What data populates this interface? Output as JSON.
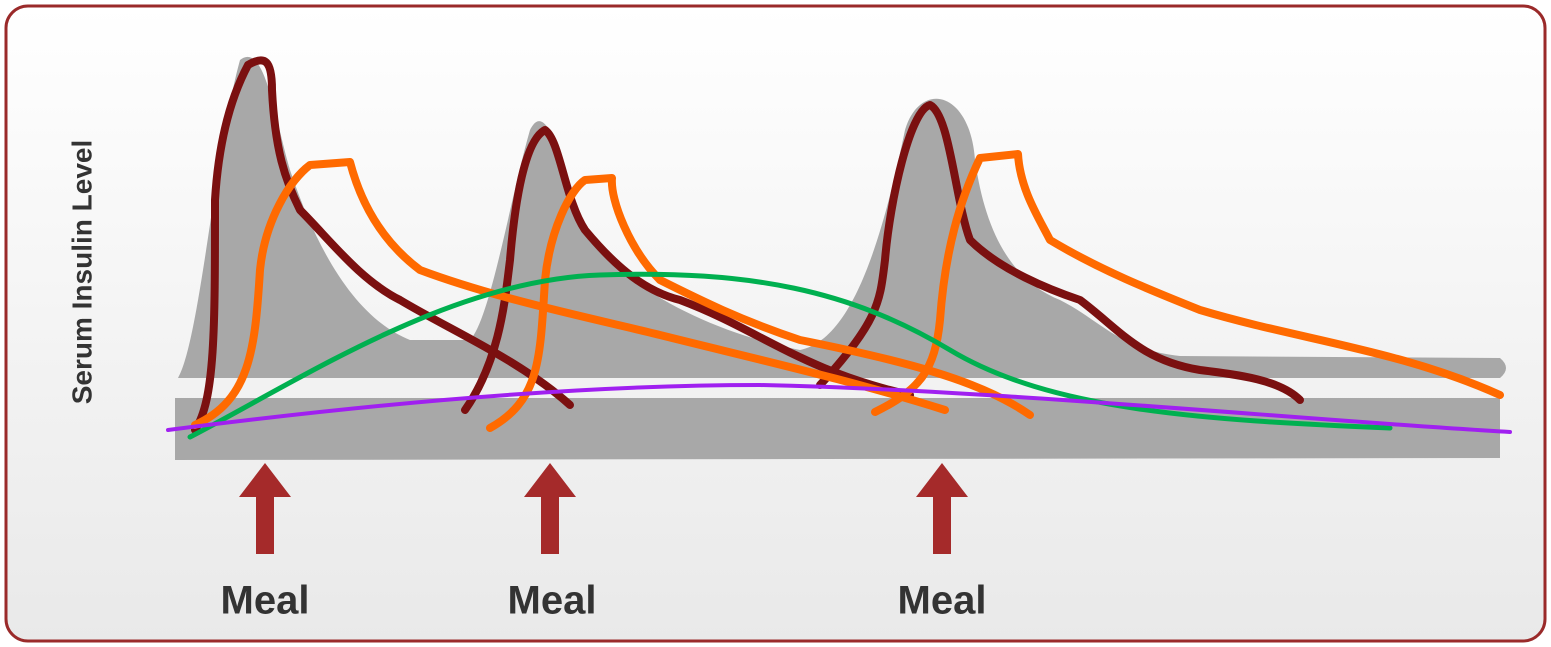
{
  "y_label": "Serum Insulin Level",
  "meals": [
    "Meal",
    "Meal",
    "Meal"
  ]
}
